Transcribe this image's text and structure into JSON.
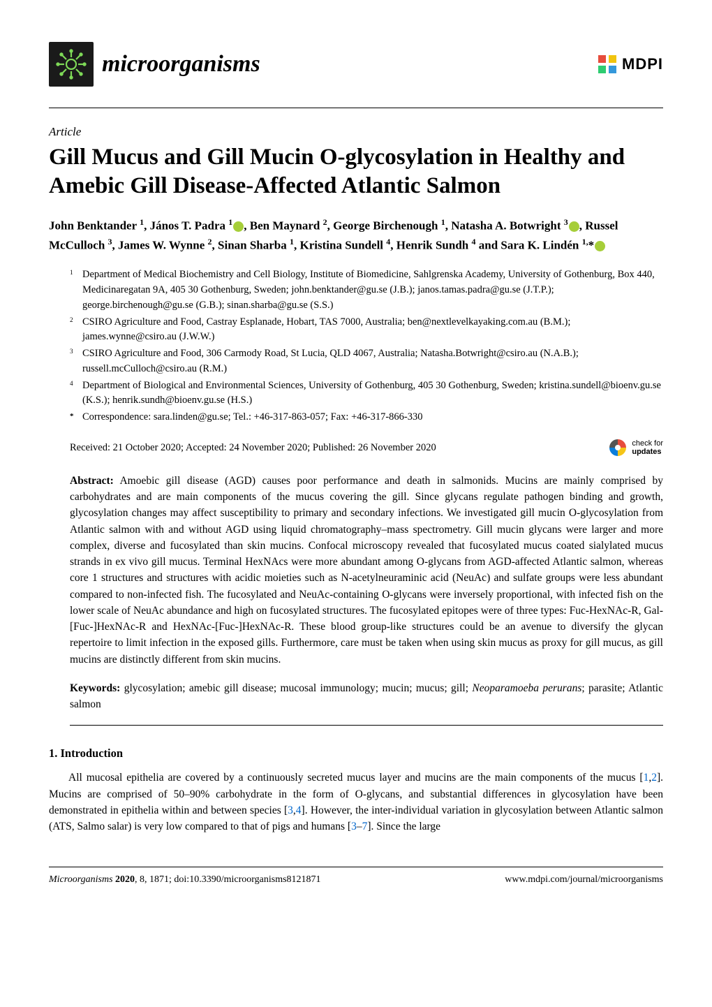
{
  "journal": {
    "name": "microorganisms",
    "logo_bg": "#1a1a1a",
    "logo_accent": "#7ed957"
  },
  "publisher": {
    "name": "MDPI"
  },
  "article_type": "Article",
  "title": "Gill Mucus and Gill Mucin O-glycosylation in Healthy and Amebic Gill Disease-Affected Atlantic Salmon",
  "authors_html": "John Benktander <sup>1</sup>, János T. Padra <sup>1</sup><span class='orcid' data-name='orcid-icon' data-interactable='false'></span>, Ben Maynard <sup>2</sup>, George Birchenough <sup>1</sup>, Natasha A. Botwright <sup>3</sup><span class='orcid' data-name='orcid-icon' data-interactable='false'></span>, Russel McCulloch <sup>3</sup>, James W. Wynne <sup>2</sup>, Sinan Sharba <sup>1</sup>, Kristina Sundell <sup>4</sup>, Henrik Sundh <sup>4</sup> and Sara K. Lindén <sup>1,</sup>*<span class='orcid' data-name='orcid-icon' data-interactable='false'></span>",
  "affiliations": [
    {
      "num": "1",
      "text": "Department of Medical Biochemistry and Cell Biology, Institute of Biomedicine, Sahlgrenska Academy, University of Gothenburg, Box 440, Medicinaregatan 9A, 405 30 Gothenburg, Sweden; john.benktander@gu.se (J.B.); janos.tamas.padra@gu.se (J.T.P.); george.birchenough@gu.se (G.B.); sinan.sharba@gu.se (S.S.)"
    },
    {
      "num": "2",
      "text": "CSIRO Agriculture and Food, Castray Esplanade, Hobart, TAS 7000, Australia; ben@nextlevelkayaking.com.au (B.M.); james.wynne@csiro.au (J.W.W.)"
    },
    {
      "num": "3",
      "text": "CSIRO Agriculture and Food, 306 Carmody Road, St Lucia, QLD 4067, Australia; Natasha.Botwright@csiro.au (N.A.B.); russell.mcCulloch@csiro.au (R.M.)"
    },
    {
      "num": "4",
      "text": "Department of Biological and Environmental Sciences, University of Gothenburg, 405 30 Gothenburg, Sweden; kristina.sundell@bioenv.gu.se (K.S.); henrik.sundh@bioenv.gu.se (H.S.)"
    },
    {
      "num": "*",
      "text": "Correspondence: sara.linden@gu.se; Tel.: +46-317-863-057; Fax: +46-317-866-330"
    }
  ],
  "dates": "Received: 21 October 2020; Accepted: 24 November 2020; Published: 26 November 2020",
  "check_updates": {
    "line1": "check for",
    "line2": "updates"
  },
  "abstract_label": "Abstract:",
  "abstract_text": " Amoebic gill disease (AGD) causes poor performance and death in salmonids. Mucins are mainly comprised by carbohydrates and are main components of the mucus covering the gill. Since glycans regulate pathogen binding and growth, glycosylation changes may affect susceptibility to primary and secondary infections. We investigated gill mucin O-glycosylation from Atlantic salmon with and without AGD using liquid chromatography–mass spectrometry. Gill mucin glycans were larger and more complex, diverse and fucosylated than skin mucins. Confocal microscopy revealed that fucosylated mucus coated sialylated mucus strands in ex vivo gill mucus. Terminal HexNAcs were more abundant among O-glycans from AGD-affected Atlantic salmon, whereas core 1 structures and structures with acidic moieties such as N-acetylneuraminic acid (NeuAc) and sulfate groups were less abundant compared to non-infected fish. The fucosylated and NeuAc-containing O-glycans were inversely proportional, with infected fish on the lower scale of NeuAc abundance and high on fucosylated structures. The fucosylated epitopes were of three types: Fuc-HexNAc-R, Gal-[Fuc-]HexNAc-R and HexNAc-[Fuc-]HexNAc-R. These blood group-like structures could be an avenue to diversify the glycan repertoire to limit infection in the exposed gills. Furthermore, care must be taken when using skin mucus as proxy for gill mucus, as gill mucins are distinctly different from skin mucins.",
  "keywords_label": "Keywords:",
  "keywords_text": " glycosylation; amebic gill disease; mucosal immunology; mucin; mucus; gill; ",
  "keywords_italic": "Neoparamoeba perurans",
  "keywords_tail": "; parasite; Atlantic salmon",
  "section": {
    "heading": "1. Introduction"
  },
  "intro_pre": "All mucosal epithelia are covered by a continuously secreted mucus layer and mucins are the main components of the mucus [",
  "intro_r1": "1",
  "intro_c1": ",",
  "intro_r2": "2",
  "intro_mid1": "]. Mucins are comprised of 50–90% carbohydrate in the form of O-glycans, and substantial differences in glycosylation have been demonstrated in epithelia within and between species [",
  "intro_r3": "3",
  "intro_c2": ",",
  "intro_r4": "4",
  "intro_mid2": "]. However, the inter-individual variation in glycosylation between Atlantic salmon (ATS, Salmo salar) is very low compared to that of pigs and humans [",
  "intro_r5": "3",
  "intro_dash": "–",
  "intro_r6": "7",
  "intro_tail": "]. Since the large",
  "footer": {
    "left_journal": "Microorganisms",
    "left_year": " 2020",
    "left_rest": ", 8, 1871; doi:10.3390/microorganisms8121871",
    "right": "www.mdpi.com/journal/microorganisms"
  },
  "colors": {
    "text": "#000000",
    "ref_link": "#0066cc",
    "orcid": "#a6ce39",
    "check_blue": "#0b7dda",
    "check_yellow": "#f5c518",
    "check_red": "#e74c3c",
    "mdpi_colors": [
      "#e74c3c",
      "#3498db",
      "#2ecc71",
      "#f1c40f"
    ]
  }
}
